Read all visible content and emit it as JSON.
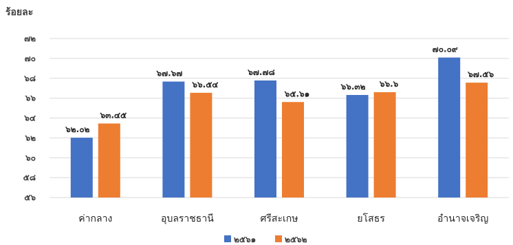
{
  "chart_data": {
    "type": "bar",
    "title": "",
    "ylabel": "ร้อยละ",
    "xlabel": "",
    "ylim": [
      56,
      72
    ],
    "yticks": [
      56,
      58,
      60,
      62,
      64,
      66,
      68,
      70,
      72
    ],
    "ytick_labels": [
      "๕๖",
      "๕๘",
      "๖๐",
      "๖๒",
      "๖๔",
      "๖๖",
      "๖๘",
      "๗๐",
      "๗๒"
    ],
    "grid": true,
    "legend_position": "bottom",
    "categories": [
      "ค่ากลาง",
      "อุบลราชธานี",
      "ศรีสะเกษ",
      "ยโสธร",
      "อำนาจเจริญ"
    ],
    "series": [
      {
        "name": "๒๕๖๑",
        "color": "#4472c4",
        "values": [
          62.02,
          67.67,
          67.78,
          66.32,
          70.09
        ],
        "labels": [
          "๖๒.๐๒",
          "๖๗.๖๗",
          "๖๗.๗๘",
          "๖๖.๓๒",
          "๗๐.๐๙"
        ]
      },
      {
        "name": "๒๕๖๒",
        "color": "#ed7d31",
        "values": [
          63.45,
          66.54,
          65.61,
          66.6,
          67.56
        ],
        "labels": [
          "๖๓.๔๕",
          "๖๖.๕๔",
          "๖๕.๖๑",
          "๖๖.๖",
          "๖๗.๕๖"
        ]
      }
    ]
  }
}
